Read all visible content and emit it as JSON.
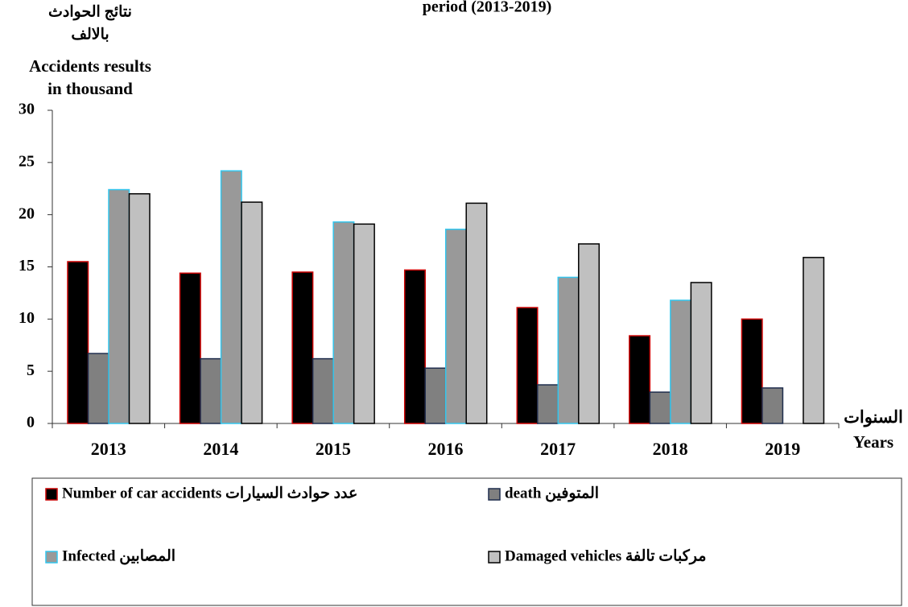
{
  "chart_data": {
    "type": "bar",
    "title": "period (2013-2019)",
    "ylabel": [
      "نتائج الحوادث",
      "بالالف",
      "Accidents results",
      "in thousand"
    ],
    "xlabel": [
      "السنوات",
      "Years"
    ],
    "categories": [
      "2013",
      "2014",
      "2015",
      "2016",
      "2017",
      "2018",
      "2019"
    ],
    "series": [
      {
        "name": "Number of car accidents عدد حوادث السيارات",
        "color": "#000000",
        "edge_color": "#cc0000",
        "values": [
          15.5,
          14.4,
          14.5,
          14.7,
          11.1,
          8.4,
          10.0
        ]
      },
      {
        "name": "death المتوفين",
        "color": "#808080",
        "edge_color": "#1f2d4d",
        "values": [
          6.7,
          6.2,
          6.2,
          5.3,
          3.7,
          3.0,
          3.4
        ]
      },
      {
        "name": "Infected المصابين",
        "color": "#999999",
        "edge_color": "#33c6ee",
        "values": [
          22.4,
          24.2,
          19.3,
          18.6,
          14.0,
          11.8,
          null
        ]
      },
      {
        "name": "Damaged vehicles مركبات تالفة",
        "color": "#c0c0c0",
        "edge_color": "#000000",
        "values": [
          22.0,
          21.2,
          19.1,
          21.1,
          17.2,
          13.5,
          15.9
        ]
      }
    ],
    "ylim": [
      0,
      30
    ],
    "yticks": [
      0,
      5,
      10,
      15,
      20,
      25,
      30
    ]
  }
}
